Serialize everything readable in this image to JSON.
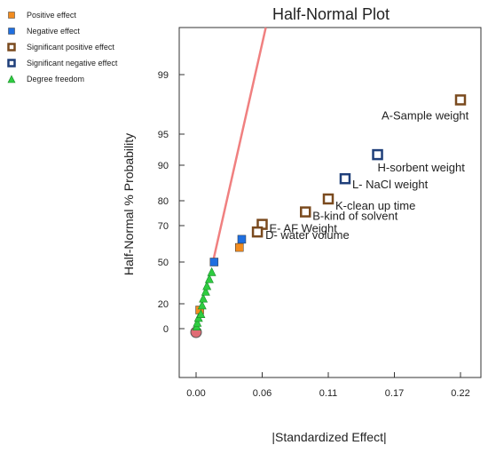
{
  "chart_data": {
    "type": "scatter",
    "title": "Half-Normal Plot",
    "xlabel": "|Standardized Effect|",
    "ylabel": "Half-Normal % Probability",
    "xlim": [
      -0.02,
      0.235
    ],
    "x_ticks": [
      "0.00",
      "0.06",
      "0.11",
      "0.17",
      "0.22"
    ],
    "x_tick_values": [
      0.0,
      0.055,
      0.11,
      0.165,
      0.22
    ],
    "y_ticks": [
      "0",
      "20",
      "50",
      "70",
      "80",
      "90",
      "95",
      "99"
    ],
    "legend": {
      "placement": "top-left",
      "entries": [
        {
          "key": "positive",
          "label": "Positive effect",
          "color": "#f28c1f"
        },
        {
          "key": "negative",
          "label": "Negative effect",
          "color": "#1f6fe0"
        },
        {
          "key": "sig_positive",
          "label": "Significant positive effect",
          "color": "#7a4a1e"
        },
        {
          "key": "sig_negative",
          "label": "Significant negative effect",
          "color": "#1f3f7a"
        },
        {
          "key": "dof",
          "label": "Degree freedom",
          "color": "#2ecc40"
        }
      ]
    },
    "reference_line": {
      "color": "#f08080",
      "from": [
        0.014,
        50
      ],
      "to": [
        0.058,
        99.6
      ]
    },
    "series": [
      {
        "key": "sig_positive",
        "name": "Significant positive effect",
        "points": [
          {
            "x": 0.22,
            "y": 97.3,
            "label": "A-Sample weight"
          },
          {
            "x": 0.11,
            "y": 80.5,
            "label": "K-clean up time"
          },
          {
            "x": 0.091,
            "y": 75.5,
            "label": "B-kind of solvent"
          },
          {
            "x": 0.055,
            "y": 70.5,
            "label": "E- AF Weight"
          },
          {
            "x": 0.051,
            "y": 66.5,
            "label": "D- water volume"
          }
        ]
      },
      {
        "key": "sig_negative",
        "name": "Significant negative effect",
        "points": [
          {
            "x": 0.151,
            "y": 91.7,
            "label": "H-sorbent weight"
          },
          {
            "x": 0.124,
            "y": 86.2,
            "label": "L- NaCl weight"
          }
        ]
      },
      {
        "key": "negative",
        "name": "Negative effect",
        "points": [
          {
            "x": 0.038,
            "y": 62.5
          },
          {
            "x": 0.015,
            "y": 50.0
          }
        ]
      },
      {
        "key": "positive",
        "name": "Positive effect",
        "points": [
          {
            "x": 0.036,
            "y": 58.0
          },
          {
            "x": 0.003,
            "y": 15.0
          }
        ]
      },
      {
        "key": "dof",
        "name": "Degree freedom",
        "points": [
          {
            "x": 0.0005,
            "y": 2
          },
          {
            "x": 0.001,
            "y": 5
          },
          {
            "x": 0.002,
            "y": 9
          },
          {
            "x": 0.004,
            "y": 12
          },
          {
            "x": 0.005,
            "y": 19
          },
          {
            "x": 0.006,
            "y": 24
          },
          {
            "x": 0.008,
            "y": 29
          },
          {
            "x": 0.009,
            "y": 33
          },
          {
            "x": 0.011,
            "y": 38
          },
          {
            "x": 0.013,
            "y": 43
          }
        ]
      }
    ],
    "origin_marker": {
      "x": 0.0,
      "y": 0,
      "color": "#e06c75"
    }
  }
}
